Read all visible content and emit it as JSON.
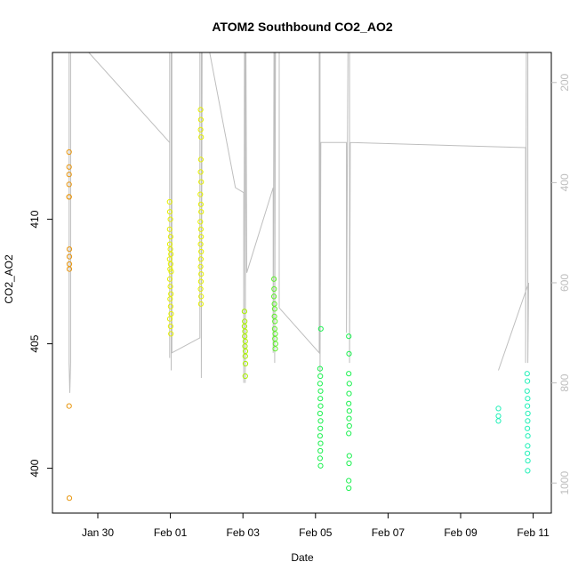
{
  "chart_data": {
    "type": "scatter",
    "title": "ATOM2 Southbound CO2_AO2",
    "xlabel": "Date",
    "ylabel": "CO2_AO2",
    "x_ticks": [
      "Jan 30",
      "Feb 01",
      "Feb 03",
      "Feb 05",
      "Feb 07",
      "Feb 09",
      "Feb 11"
    ],
    "xlim": [
      "2016-01-28T18:00",
      "2016-02-11T12:00"
    ],
    "ylim": [
      398.2,
      416.7
    ],
    "y_ticks": [
      400,
      405,
      410
    ],
    "y_tick_labels": [
      "400",
      "405",
      "410"
    ],
    "right_axis": {
      "ylim": [
        1060,
        140
      ],
      "ticks": [
        200,
        400,
        600,
        800,
        1000
      ],
      "tick_labels": [
        "200",
        "400",
        "600",
        "800",
        "1000"
      ],
      "color": "#bebebe"
    },
    "grid": false,
    "legend": "none",
    "point_style": "open-circle",
    "colors": {
      "orange": "#e8960f",
      "yellow": "#e6f000",
      "yellowgreen": "#aaf000",
      "green": "#5ef02a",
      "brightgreen": "#1cf050",
      "cyan": "#22f0b8",
      "track": "#bebebe"
    },
    "series": [
      {
        "color": "#e8960f",
        "points": [
          [
            "2016-01-29T05:00",
            412.7
          ],
          [
            "2016-01-29T05:00",
            412.1
          ],
          [
            "2016-01-29T05:00",
            411.8
          ],
          [
            "2016-01-29T05:00",
            411.4
          ],
          [
            "2016-01-29T05:00",
            410.9
          ],
          [
            "2016-01-29T05:00",
            410.9
          ],
          [
            "2016-01-29T05:10",
            408.8
          ],
          [
            "2016-01-29T05:10",
            408.5
          ],
          [
            "2016-01-29T05:10",
            408.2
          ],
          [
            "2016-01-29T05:10",
            408.0
          ],
          [
            "2016-01-29T05:00",
            402.5
          ],
          [
            "2016-01-29T05:10",
            398.8
          ]
        ]
      },
      {
        "color": "#e6f000",
        "points": [
          [
            "2016-01-31T23:30",
            410.7
          ],
          [
            "2016-01-31T23:40",
            410.3
          ],
          [
            "2016-02-01T00:00",
            410.0
          ],
          [
            "2016-01-31T23:30",
            409.6
          ],
          [
            "2016-02-01T00:10",
            409.3
          ],
          [
            "2016-01-31T23:40",
            409.0
          ],
          [
            "2016-02-01T00:00",
            408.8
          ],
          [
            "2016-02-01T00:20",
            408.6
          ],
          [
            "2016-01-31T23:30",
            408.4
          ],
          [
            "2016-02-01T00:10",
            408.2
          ],
          [
            "2016-01-31T23:50",
            408.0
          ],
          [
            "2016-02-01T00:30",
            407.9
          ],
          [
            "2016-01-31T23:40",
            407.6
          ],
          [
            "2016-02-01T00:00",
            407.3
          ],
          [
            "2016-02-01T00:20",
            407.0
          ],
          [
            "2016-01-31T23:50",
            406.8
          ],
          [
            "2016-02-01T00:10",
            406.5
          ],
          [
            "2016-02-01T00:30",
            406.2
          ],
          [
            "2016-01-31T23:40",
            406.0
          ],
          [
            "2016-02-01T00:10",
            405.7
          ],
          [
            "2016-02-01T00:20",
            405.4
          ],
          [
            "2016-02-01T20:00",
            414.4
          ],
          [
            "2016-02-01T20:10",
            414.0
          ],
          [
            "2016-02-01T20:00",
            413.6
          ],
          [
            "2016-02-01T20:20",
            413.3
          ],
          [
            "2016-02-01T20:10",
            412.4
          ],
          [
            "2016-02-01T20:00",
            411.9
          ],
          [
            "2016-02-01T20:20",
            411.5
          ],
          [
            "2016-02-01T19:50",
            411.0
          ],
          [
            "2016-02-01T20:10",
            410.6
          ],
          [
            "2016-02-01T20:20",
            410.3
          ],
          [
            "2016-02-01T19:50",
            409.9
          ],
          [
            "2016-02-01T20:10",
            409.6
          ],
          [
            "2016-02-01T20:20",
            409.3
          ],
          [
            "2016-02-01T20:00",
            409.0
          ],
          [
            "2016-02-01T20:20",
            408.7
          ],
          [
            "2016-02-01T20:10",
            408.4
          ],
          [
            "2016-02-01T20:00",
            408.1
          ],
          [
            "2016-02-01T20:20",
            407.8
          ],
          [
            "2016-02-01T20:10",
            407.5
          ],
          [
            "2016-02-01T20:00",
            407.2
          ],
          [
            "2016-02-01T20:20",
            406.9
          ],
          [
            "2016-02-01T20:10",
            406.6
          ]
        ]
      },
      {
        "color": "#aaf000",
        "points": [
          [
            "2016-02-03T01:00",
            406.3
          ],
          [
            "2016-02-03T01:10",
            405.9
          ],
          [
            "2016-02-03T01:00",
            405.7
          ],
          [
            "2016-02-03T01:20",
            405.5
          ],
          [
            "2016-02-03T01:10",
            405.3
          ],
          [
            "2016-02-03T01:30",
            405.1
          ],
          [
            "2016-02-03T01:20",
            404.9
          ],
          [
            "2016-02-03T01:40",
            404.7
          ],
          [
            "2016-02-03T01:30",
            404.5
          ],
          [
            "2016-02-03T01:40",
            404.2
          ],
          [
            "2016-02-03T01:30",
            403.7
          ]
        ]
      },
      {
        "color": "#5ef02a",
        "points": [
          [
            "2016-02-03T20:30",
            407.6
          ],
          [
            "2016-02-03T20:40",
            407.2
          ],
          [
            "2016-02-03T20:30",
            406.9
          ],
          [
            "2016-02-03T20:50",
            406.6
          ],
          [
            "2016-02-03T21:00",
            406.4
          ],
          [
            "2016-02-03T20:50",
            406.1
          ],
          [
            "2016-02-03T21:10",
            405.9
          ],
          [
            "2016-02-03T21:00",
            405.6
          ],
          [
            "2016-02-03T21:20",
            405.4
          ],
          [
            "2016-02-03T21:10",
            405.2
          ],
          [
            "2016-02-03T21:30",
            405.0
          ],
          [
            "2016-02-03T21:20",
            404.8
          ]
        ]
      },
      {
        "color": "#1cf050",
        "points": [
          [
            "2016-02-05T03:00",
            404.0
          ],
          [
            "2016-02-05T03:10",
            403.7
          ],
          [
            "2016-02-05T03:00",
            403.4
          ],
          [
            "2016-02-05T03:20",
            403.1
          ],
          [
            "2016-02-05T03:10",
            402.8
          ],
          [
            "2016-02-05T03:20",
            402.5
          ],
          [
            "2016-02-05T03:00",
            402.2
          ],
          [
            "2016-02-05T03:20",
            401.9
          ],
          [
            "2016-02-05T03:10",
            401.6
          ],
          [
            "2016-02-05T03:00",
            401.3
          ],
          [
            "2016-02-05T03:20",
            401.0
          ],
          [
            "2016-02-05T03:10",
            400.7
          ],
          [
            "2016-02-05T03:00",
            400.4
          ],
          [
            "2016-02-05T03:20",
            400.1
          ],
          [
            "2016-02-05T03:30",
            405.6
          ],
          [
            "2016-02-05T22:00",
            405.3
          ],
          [
            "2016-02-05T22:10",
            404.6
          ],
          [
            "2016-02-05T22:00",
            403.8
          ],
          [
            "2016-02-05T22:20",
            403.4
          ],
          [
            "2016-02-05T22:10",
            403.0
          ],
          [
            "2016-02-05T22:00",
            402.6
          ],
          [
            "2016-02-05T22:20",
            402.3
          ],
          [
            "2016-02-05T22:10",
            402.0
          ],
          [
            "2016-02-05T22:20",
            401.7
          ],
          [
            "2016-02-05T22:00",
            401.4
          ],
          [
            "2016-02-05T22:20",
            400.5
          ],
          [
            "2016-02-05T22:10",
            400.2
          ],
          [
            "2016-02-05T22:00",
            399.5
          ],
          [
            "2016-02-05T22:00",
            399.2
          ]
        ]
      },
      {
        "color": "#22f0b8",
        "points": [
          [
            "2016-02-10T01:00",
            402.4
          ],
          [
            "2016-02-10T01:00",
            402.1
          ],
          [
            "2016-02-10T01:00",
            401.9
          ],
          [
            "2016-02-10T20:00",
            403.8
          ],
          [
            "2016-02-10T20:10",
            403.5
          ],
          [
            "2016-02-10T20:00",
            403.1
          ],
          [
            "2016-02-10T20:20",
            402.8
          ],
          [
            "2016-02-10T20:10",
            402.5
          ],
          [
            "2016-02-10T20:30",
            402.2
          ],
          [
            "2016-02-10T20:20",
            401.9
          ],
          [
            "2016-02-10T20:10",
            401.6
          ],
          [
            "2016-02-10T20:30",
            401.3
          ],
          [
            "2016-02-10T20:20",
            400.9
          ],
          [
            "2016-02-10T20:10",
            400.6
          ],
          [
            "2016-02-10T20:30",
            400.3
          ],
          [
            "2016-02-10T20:20",
            399.9
          ]
        ]
      }
    ],
    "track_line": {
      "color": "#bebebe",
      "axis": "right",
      "points": [
        [
          "2016-01-29T05:00",
          140
        ],
        [
          "2016-01-29T05:00",
          760
        ],
        [
          "2016-01-29T05:30",
          820
        ],
        [
          "2016-01-29T06:00",
          760
        ],
        [
          "2016-01-29T06:00",
          140
        ],
        [
          "2016-01-29T18:00",
          140
        ],
        [
          "2016-01-31T23:30",
          320
        ],
        [
          "2016-01-31T23:30",
          750
        ],
        [
          "2016-01-31T23:30",
          140
        ],
        [
          "2016-02-01T00:30",
          140
        ],
        [
          "2016-02-01T00:30",
          775
        ],
        [
          "2016-02-01T01:00",
          140
        ],
        [
          "2016-02-01T01:00",
          740
        ],
        [
          "2016-02-01T19:30",
          710
        ],
        [
          "2016-02-01T19:30",
          140
        ],
        [
          "2016-02-01T20:30",
          140
        ],
        [
          "2016-02-01T20:30",
          790
        ],
        [
          "2016-02-01T21:00",
          140
        ],
        [
          "2016-02-02T02:00",
          140
        ],
        [
          "2016-02-02T19:00",
          410
        ],
        [
          "2016-02-03T00:30",
          420
        ],
        [
          "2016-02-03T00:30",
          800
        ],
        [
          "2016-02-03T01:00",
          140
        ],
        [
          "2016-02-03T01:30",
          140
        ],
        [
          "2016-02-03T01:30",
          800
        ],
        [
          "2016-02-03T02:00",
          140
        ],
        [
          "2016-02-03T02:30",
          580
        ],
        [
          "2016-02-03T20:00",
          410
        ],
        [
          "2016-02-03T20:00",
          740
        ],
        [
          "2016-02-03T20:30",
          140
        ],
        [
          "2016-02-03T21:00",
          140
        ],
        [
          "2016-02-03T21:00",
          760
        ],
        [
          "2016-02-03T21:30",
          140
        ],
        [
          "2016-02-04T00:00",
          140
        ],
        [
          "2016-02-04T00:00",
          650
        ],
        [
          "2016-02-05T02:30",
          740
        ],
        [
          "2016-02-05T02:30",
          140
        ],
        [
          "2016-02-05T03:00",
          140
        ],
        [
          "2016-02-05T03:00",
          780
        ],
        [
          "2016-02-05T03:30",
          320
        ],
        [
          "2016-02-05T20:30",
          320
        ],
        [
          "2016-02-05T20:30",
          700
        ],
        [
          "2016-02-05T21:30",
          140
        ],
        [
          "2016-02-05T22:30",
          140
        ],
        [
          "2016-02-05T22:30",
          760
        ],
        [
          "2016-02-05T23:00",
          320
        ],
        [
          "2016-02-10T19:00",
          330
        ],
        [
          "2016-02-10T19:00",
          760
        ],
        [
          "2016-02-10T19:30",
          140
        ],
        [
          "2016-02-10T20:30",
          140
        ],
        [
          "2016-02-10T20:30",
          760
        ],
        [
          "2016-02-10T21:00",
          600
        ],
        [
          "2016-02-10T01:00",
          775
        ]
      ]
    }
  }
}
